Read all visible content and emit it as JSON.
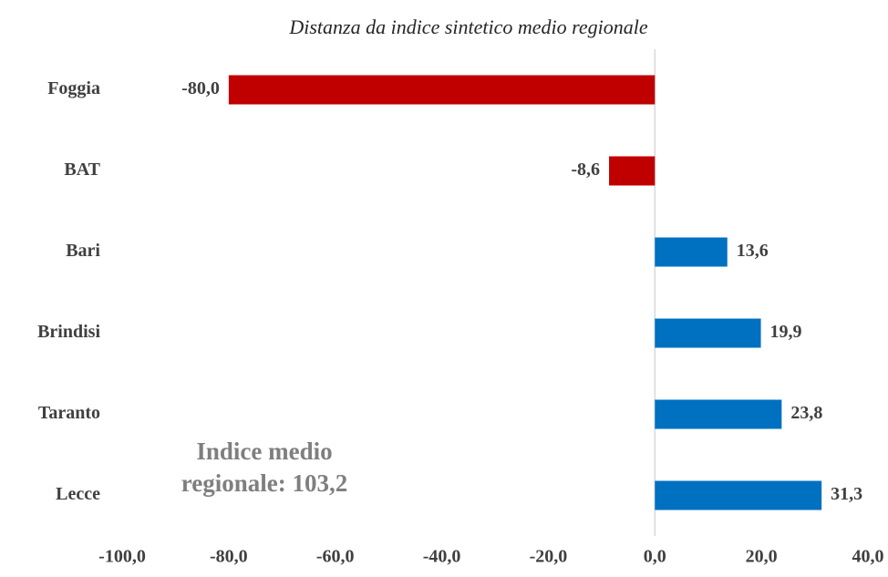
{
  "chart_data": {
    "type": "barh",
    "title": "Distanza da indice sintetico medio regionale",
    "annotation": "Indice medio regionale: 103,2",
    "categories": [
      "Foggia",
      "BAT",
      "Bari",
      "Brindisi",
      "Taranto",
      "Lecce"
    ],
    "values": [
      -80.0,
      -8.6,
      13.6,
      19.9,
      23.8,
      31.3
    ],
    "value_labels": [
      "-80,0",
      "-8,6",
      "13,6",
      "19,9",
      "23,8",
      "31,3"
    ],
    "color": "#0070c0",
    "negative_color": "#c00000",
    "xlim": [
      -100,
      40
    ],
    "xticks": [
      {
        "value": -100,
        "label": "-100,0"
      },
      {
        "value": -80,
        "label": "-80,0"
      },
      {
        "value": -60,
        "label": "-60,0"
      },
      {
        "value": -40,
        "label": "-40,0"
      },
      {
        "value": -20,
        "label": "-20,0"
      },
      {
        "value": 0,
        "label": "0,0"
      },
      {
        "value": 20,
        "label": "20,0"
      },
      {
        "value": 40,
        "label": "40,0"
      }
    ],
    "grid": false
  }
}
